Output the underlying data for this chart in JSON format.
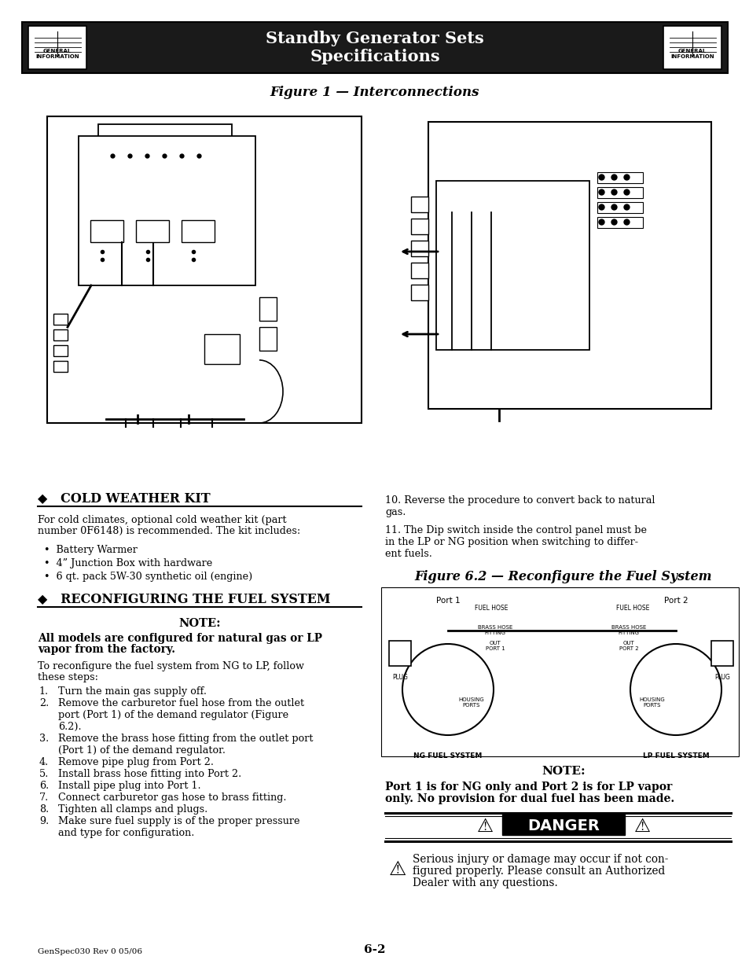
{
  "page_bg": "#ffffff",
  "header_bg": "#1a1a1a",
  "header_text": "Standby Generator Sets\nSpecifications",
  "header_text_color": "#ffffff",
  "figure1_title": "Figure 1 — Interconnections",
  "figure62_title": "Figure 6.2 — Reconfigure the Fuel System",
  "cold_weather_heading": "◆   COLD WEATHER KIT",
  "cold_weather_text_1": "For cold climates, optional cold weather kit (part",
  "cold_weather_text_2": "number 0F6148) is recommended. The kit includes:",
  "cold_weather_bullets": [
    "Battery Warmer",
    "4” Junction Box with hardware",
    "6 qt. pack 5W-30 synthetic oil (engine)"
  ],
  "reconfig_heading": "◆   RECONFIGURING THE FUEL SYSTEM",
  "note_label": "NOTE:",
  "note_bold_text_1": "All models are configured for natural gas or LP",
  "note_bold_text_2": "vapor from the factory.",
  "reconfig_intro_1": "To reconfigure the fuel system from NG to LP, follow",
  "reconfig_intro_2": "these steps:",
  "reconfig_steps": [
    [
      "1.",
      "Turn the main gas supply off."
    ],
    [
      "2.",
      "Remove the carburetor fuel hose from the outlet"
    ],
    [
      "",
      "port (Port 1) of the demand regulator (Figure"
    ],
    [
      "",
      "6.2)."
    ],
    [
      "3.",
      "Remove the brass hose fitting from the outlet port"
    ],
    [
      "",
      "(Port 1) of the demand regulator."
    ],
    [
      "4.",
      "Remove pipe plug from Port 2."
    ],
    [
      "5.",
      "Install brass hose fitting into Port 2."
    ],
    [
      "6.",
      "Install pipe plug into Port 1."
    ],
    [
      "7.",
      "Connect carburetor gas hose to brass fitting."
    ],
    [
      "8.",
      "Tighten all clamps and plugs."
    ],
    [
      "9.",
      "Make sure fuel supply is of the proper pressure"
    ],
    [
      "",
      "and type for configuration."
    ]
  ],
  "right_step10_1": "10. Reverse the procedure to convert back to natural",
  "right_step10_2": "gas.",
  "right_step11_1": "11. The Dip switch inside the control panel must be",
  "right_step11_2": "in the LP or NG position when switching to differ-",
  "right_step11_3": "ent fuels.",
  "note2_label": "NOTE:",
  "note2_text_1": "Port 1 is for NG only and Port 2 is for LP vapor",
  "note2_text_2": "only. No provision for dual fuel has been made.",
  "danger_label": "DANGER",
  "danger_text_1": "Serious injury or damage may occur if not con-",
  "danger_text_2": "figured properly. Please consult an Authorized",
  "danger_text_3": "Dealer with any questions.",
  "footer_left": "GenSpec030 Rev 0 05/06",
  "footer_center": "6-2",
  "general_info_label": "GENERAL\nINFORMATION"
}
